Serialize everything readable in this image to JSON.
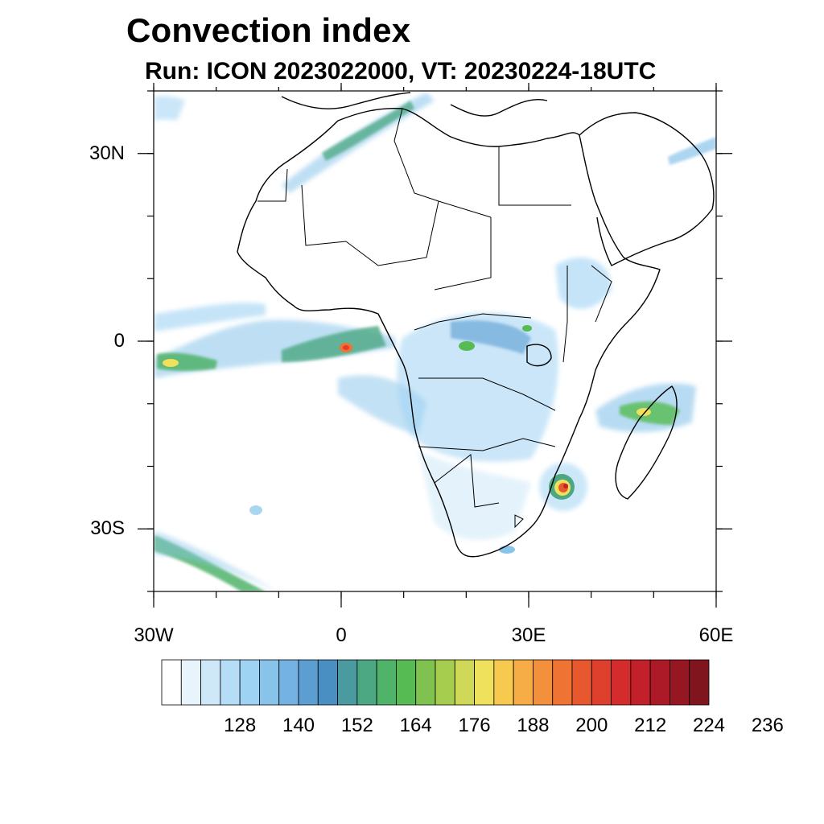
{
  "title": "Convection index",
  "subtitle": "Run: ICON 2023022000,  VT: 20230224-18UTC",
  "axes": {
    "lat_ticks": [
      {
        "value": 30,
        "label": "30N"
      },
      {
        "value": 0,
        "label": "0"
      },
      {
        "value": -30,
        "label": "30S"
      }
    ],
    "lon_ticks": [
      {
        "value": -30,
        "label": "30W"
      },
      {
        "value": 0,
        "label": "0"
      },
      {
        "value": 30,
        "label": "30E"
      },
      {
        "value": 60,
        "label": "60E"
      }
    ],
    "lon_range": [
      -30,
      60
    ],
    "lat_range": [
      -40,
      40
    ]
  },
  "colorbar": {
    "colors": [
      "#ffffff",
      "#e8f4fb",
      "#cfe8f8",
      "#b6ddf6",
      "#9fd3f4",
      "#88c4ea",
      "#73b2e2",
      "#5c9dd2",
      "#4a8fc2",
      "#4a9aa0",
      "#4ba882",
      "#4fb36a",
      "#56bb52",
      "#7fc24f",
      "#a6cd4e",
      "#cfd957",
      "#f0e15c",
      "#f8c94f",
      "#f6ad45",
      "#f3903c",
      "#ef7433",
      "#e8582e",
      "#df3f2d",
      "#d42b2c",
      "#c2202b",
      "#ac1a27",
      "#951722",
      "#80151e"
    ],
    "labels": [
      "128",
      "140",
      "152",
      "164",
      "176",
      "188",
      "200",
      "212",
      "224",
      "236"
    ],
    "label_values": [
      128,
      140,
      152,
      164,
      176,
      188,
      200,
      212,
      224,
      236
    ],
    "first_level": 116,
    "interval": 4
  }
}
